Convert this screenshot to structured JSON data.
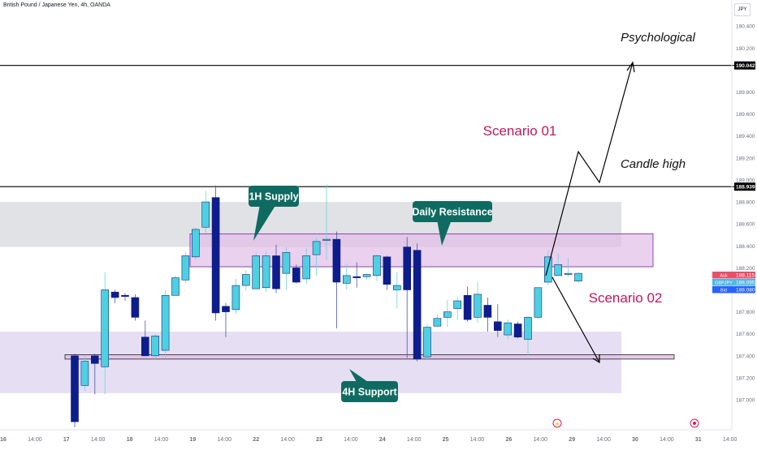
{
  "header": {
    "symbol": "British Pound / Japanese Yen, 4h, OANDA"
  },
  "currency_button": "JPY",
  "colors": {
    "bull": "#4dd0e1",
    "bear": "#0d1d8c",
    "annotation_red": "#c2185b",
    "callout_green": "#0f6b61",
    "supply_fill": "#e1bee7",
    "support_fill": "#e3dcf3",
    "resistance_zone": "#dcdde1"
  },
  "chart_data": {
    "type": "candlestick",
    "x_ticks": [
      "16",
      "14:00",
      "17",
      "14:00",
      "18",
      "14:00",
      "19",
      "14:00",
      "22",
      "14:00",
      "23",
      "14:00",
      "24",
      "14:00",
      "25",
      "14:00",
      "26",
      "14:00",
      "29",
      "14:00",
      "30",
      "14:00",
      "31",
      "14:00"
    ],
    "y_ticks": [
      "190.400",
      "190.200",
      "189.800",
      "189.600",
      "189.400",
      "189.200",
      "189.000",
      "188.800",
      "188.600",
      "188.400",
      "188.200",
      "187.800",
      "187.600",
      "187.400",
      "187.200",
      "187.000"
    ],
    "y_range": [
      186.86,
      190.49
    ],
    "candles": [
      {
        "o": 187.4,
        "h": 187.42,
        "l": 186.75,
        "c": 186.8
      },
      {
        "o": 187.13,
        "h": 187.4,
        "l": 187.08,
        "c": 187.35
      },
      {
        "o": 187.4,
        "h": 187.42,
        "l": 187.05,
        "c": 187.33
      },
      {
        "o": 187.3,
        "h": 188.16,
        "l": 187.05,
        "c": 188.0
      },
      {
        "o": 187.98,
        "h": 188.0,
        "l": 187.88,
        "c": 187.93
      },
      {
        "o": 187.95,
        "h": 187.97,
        "l": 187.9,
        "c": 187.94
      },
      {
        "o": 187.93,
        "h": 187.96,
        "l": 187.72,
        "c": 187.75
      },
      {
        "o": 187.57,
        "h": 187.72,
        "l": 187.4,
        "c": 187.4
      },
      {
        "o": 187.4,
        "h": 187.6,
        "l": 187.37,
        "c": 187.58
      },
      {
        "o": 187.45,
        "h": 188.0,
        "l": 187.38,
        "c": 187.95
      },
      {
        "o": 187.95,
        "h": 188.13,
        "l": 187.95,
        "c": 188.11
      },
      {
        "o": 188.09,
        "h": 188.34,
        "l": 188.06,
        "c": 188.31
      },
      {
        "o": 188.3,
        "h": 188.57,
        "l": 188.27,
        "c": 188.55
      },
      {
        "o": 188.57,
        "h": 188.9,
        "l": 188.52,
        "c": 188.8
      },
      {
        "o": 188.84,
        "h": 188.95,
        "l": 187.72,
        "c": 187.79
      },
      {
        "o": 187.85,
        "h": 187.88,
        "l": 187.57,
        "c": 187.8
      },
      {
        "o": 187.82,
        "h": 188.1,
        "l": 187.78,
        "c": 188.04
      },
      {
        "o": 188.04,
        "h": 188.18,
        "l": 187.99,
        "c": 188.14
      },
      {
        "o": 188.01,
        "h": 188.34,
        "l": 188.01,
        "c": 188.31
      },
      {
        "o": 188.02,
        "h": 188.35,
        "l": 187.98,
        "c": 188.31
      },
      {
        "o": 188.31,
        "h": 188.41,
        "l": 187.97,
        "c": 188.01
      },
      {
        "o": 188.15,
        "h": 188.39,
        "l": 188.0,
        "c": 188.34
      },
      {
        "o": 188.2,
        "h": 188.23,
        "l": 188.06,
        "c": 188.07
      },
      {
        "o": 188.1,
        "h": 188.38,
        "l": 188.05,
        "c": 188.31
      },
      {
        "o": 188.32,
        "h": 188.47,
        "l": 188.13,
        "c": 188.44
      },
      {
        "o": 188.45,
        "h": 188.96,
        "l": 188.27,
        "c": 188.46
      },
      {
        "o": 188.46,
        "h": 188.53,
        "l": 187.65,
        "c": 188.07
      },
      {
        "o": 188.06,
        "h": 188.24,
        "l": 188.0,
        "c": 188.13
      },
      {
        "o": 188.12,
        "h": 188.25,
        "l": 188.02,
        "c": 188.11
      },
      {
        "o": 188.12,
        "h": 188.15,
        "l": 188.09,
        "c": 188.14
      },
      {
        "o": 188.13,
        "h": 188.32,
        "l": 188.08,
        "c": 188.31
      },
      {
        "o": 188.3,
        "h": 188.31,
        "l": 188.0,
        "c": 188.05
      },
      {
        "o": 188.0,
        "h": 188.16,
        "l": 187.83,
        "c": 188.04
      },
      {
        "o": 188.39,
        "h": 188.48,
        "l": 187.38,
        "c": 188.0
      },
      {
        "o": 188.36,
        "h": 188.42,
        "l": 187.35,
        "c": 187.37
      },
      {
        "o": 187.39,
        "h": 187.69,
        "l": 187.36,
        "c": 187.66
      },
      {
        "o": 187.67,
        "h": 187.78,
        "l": 187.66,
        "c": 187.74
      },
      {
        "o": 187.75,
        "h": 187.91,
        "l": 187.66,
        "c": 187.8
      },
      {
        "o": 187.83,
        "h": 187.94,
        "l": 187.73,
        "c": 187.9
      },
      {
        "o": 187.95,
        "h": 188.03,
        "l": 187.71,
        "c": 187.73
      },
      {
        "o": 187.75,
        "h": 188.07,
        "l": 187.7,
        "c": 187.96
      },
      {
        "o": 187.86,
        "h": 187.93,
        "l": 187.62,
        "c": 187.75
      },
      {
        "o": 187.71,
        "h": 187.87,
        "l": 187.57,
        "c": 187.63
      },
      {
        "o": 187.59,
        "h": 187.73,
        "l": 187.55,
        "c": 187.7
      },
      {
        "o": 187.69,
        "h": 187.71,
        "l": 187.56,
        "c": 187.57
      },
      {
        "o": 187.55,
        "h": 187.76,
        "l": 187.4,
        "c": 187.75
      },
      {
        "o": 187.75,
        "h": 188.02,
        "l": 187.74,
        "c": 188.02
      },
      {
        "o": 188.07,
        "h": 188.36,
        "l": 188.04,
        "c": 188.3
      },
      {
        "o": 188.13,
        "h": 188.33,
        "l": 188.13,
        "c": 188.23
      },
      {
        "o": 188.14,
        "h": 188.29,
        "l": 188.12,
        "c": 188.15
      },
      {
        "o": 188.08,
        "h": 188.16,
        "l": 188.06,
        "c": 188.15
      }
    ],
    "horizontal_lines": [
      {
        "price": 190.042,
        "label": "190.042"
      },
      {
        "price": 188.939,
        "label": "188.939"
      }
    ],
    "price_tags": [
      {
        "name": "Ask",
        "value": "188.115",
        "color": "#e8506a"
      },
      {
        "name": "GBPJPY",
        "value": "188.095",
        "color": "#4fb8e6"
      },
      {
        "name": "Bid",
        "value": "188.080",
        "color": "#2962ff"
      }
    ],
    "zones": [
      {
        "name": "daily-resistance-zone",
        "from": 188.39,
        "to": 188.8
      },
      {
        "name": "supply-zone",
        "from": 188.21,
        "to": 188.51
      },
      {
        "name": "support-zone",
        "from": 187.06,
        "to": 187.62
      },
      {
        "name": "support-band",
        "from": 187.37,
        "to": 187.41
      }
    ],
    "annotations": {
      "supply": "1H Supply",
      "resistance": "Daily Resistance",
      "support": "4H Support",
      "scenario1": "Scenario 01",
      "scenario2": "Scenario 02",
      "psychological": "Psychological",
      "candle_high": "Candle high"
    }
  }
}
